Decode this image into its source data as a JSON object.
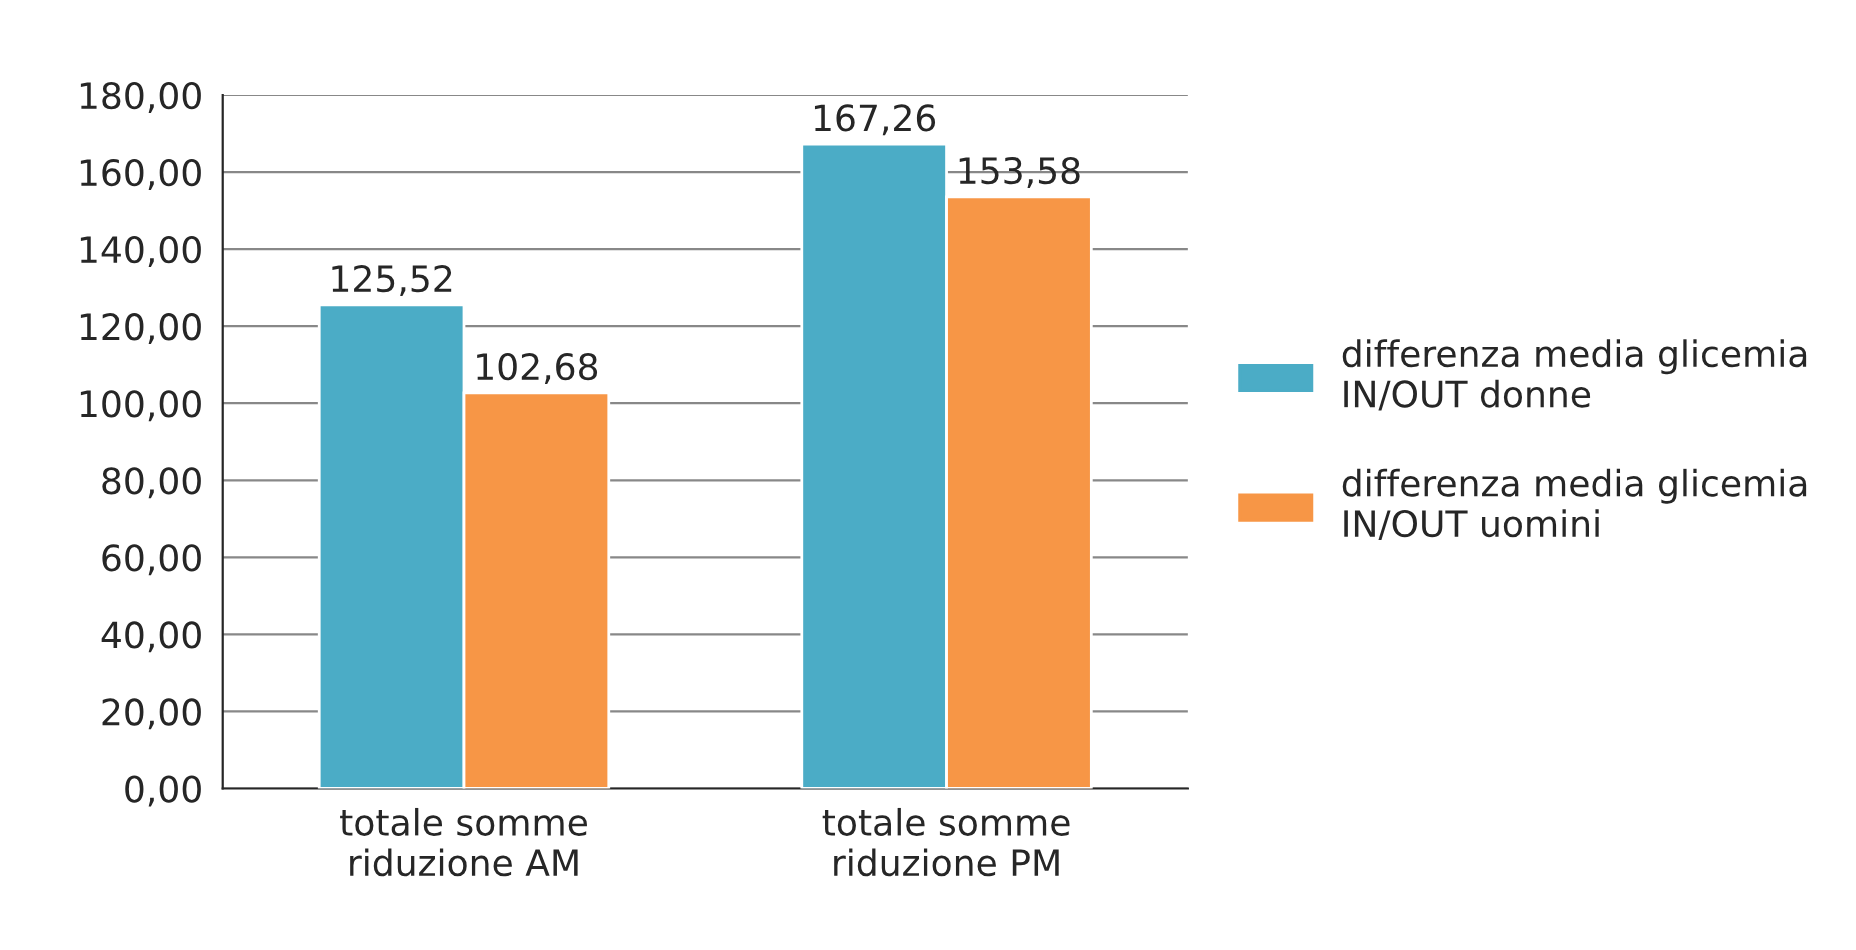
{
  "chart_data": {
    "type": "bar",
    "categories": [
      "totale somme\nriduzione AM",
      "totale somme\nriduzione PM"
    ],
    "series": [
      {
        "name": "differenza media glicemia\nIN/OUT donne",
        "color": "#4bacc6",
        "values": [
          125.52,
          167.26
        ],
        "value_labels": [
          "125,52",
          "167,26"
        ]
      },
      {
        "name": "differenza media glicemia\nIN/OUT uomini",
        "color": "#f79646",
        "values": [
          102.68,
          153.58
        ],
        "value_labels": [
          "102,68",
          "153,58"
        ]
      }
    ],
    "ylim": [
      0,
      180
    ],
    "yticks": [
      {
        "value": 0,
        "label": "0,00"
      },
      {
        "value": 20,
        "label": "20,00"
      },
      {
        "value": 40,
        "label": "40,00"
      },
      {
        "value": 60,
        "label": "60,00"
      },
      {
        "value": 80,
        "label": "80,00"
      },
      {
        "value": 100,
        "label": "100,00"
      },
      {
        "value": 120,
        "label": "120,00"
      },
      {
        "value": 140,
        "label": "140,00"
      },
      {
        "value": 160,
        "label": "160,00"
      },
      {
        "value": 180,
        "label": "180,00"
      }
    ],
    "grid": "y",
    "legend": "right"
  }
}
